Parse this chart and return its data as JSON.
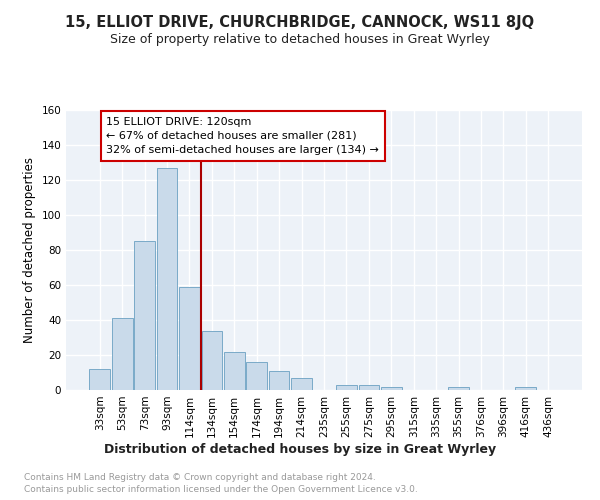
{
  "title": "15, ELLIOT DRIVE, CHURCHBRIDGE, CANNOCK, WS11 8JQ",
  "subtitle": "Size of property relative to detached houses in Great Wyrley",
  "xlabel": "Distribution of detached houses by size in Great Wyrley",
  "ylabel": "Number of detached properties",
  "footnote1": "Contains HM Land Registry data © Crown copyright and database right 2024.",
  "footnote2": "Contains public sector information licensed under the Open Government Licence v3.0.",
  "categories": [
    "33sqm",
    "53sqm",
    "73sqm",
    "93sqm",
    "114sqm",
    "134sqm",
    "154sqm",
    "174sqm",
    "194sqm",
    "214sqm",
    "235sqm",
    "255sqm",
    "275sqm",
    "295sqm",
    "315sqm",
    "335sqm",
    "355sqm",
    "376sqm",
    "396sqm",
    "416sqm",
    "436sqm"
  ],
  "values": [
    12,
    41,
    85,
    127,
    59,
    34,
    22,
    16,
    11,
    7,
    0,
    3,
    3,
    2,
    0,
    0,
    2,
    0,
    0,
    2,
    0
  ],
  "bar_color": "#c9daea",
  "bar_edge_color": "#7aaac8",
  "vline_x": 4.5,
  "vline_color": "#aa0000",
  "annotation_title": "15 ELLIOT DRIVE: 120sqm",
  "annotation_line1": "← 67% of detached houses are smaller (281)",
  "annotation_line2": "32% of semi-detached houses are larger (134) →",
  "annotation_box_color": "#ffffff",
  "annotation_box_edge": "#cc0000",
  "ylim": [
    0,
    160
  ],
  "yticks": [
    0,
    20,
    40,
    60,
    80,
    100,
    120,
    140,
    160
  ],
  "background_color": "#edf2f8",
  "grid_color": "#ffffff",
  "title_fontsize": 10.5,
  "subtitle_fontsize": 9,
  "xlabel_fontsize": 9,
  "ylabel_fontsize": 8.5,
  "tick_fontsize": 7.5,
  "annotation_fontsize": 8,
  "footnote_fontsize": 6.5,
  "footnote_color": "#999999"
}
